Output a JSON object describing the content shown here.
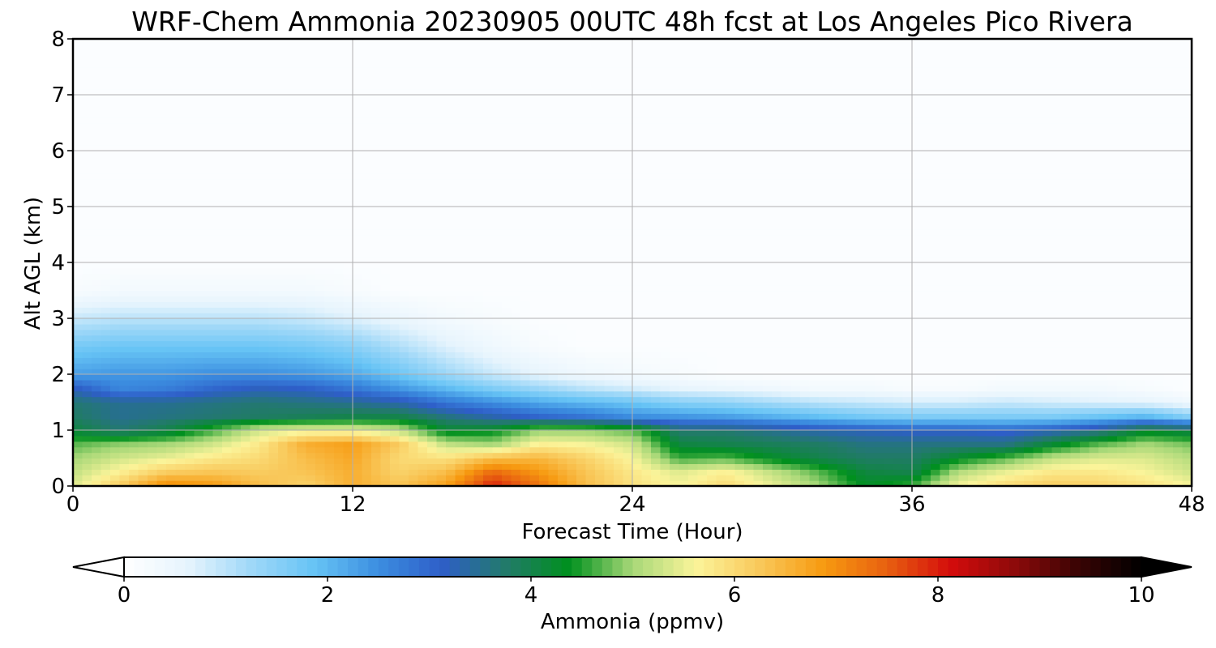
{
  "chart_data": {
    "type": "heatmap",
    "title": "WRF-Chem Ammonia  20230905 00UTC 48h fcst at Los Angeles Pico Rivera",
    "xlabel": "Forecast Time (Hour)",
    "ylabel": "Alt AGL (km)",
    "xlim": [
      0,
      48
    ],
    "ylim": [
      0,
      8
    ],
    "x_ticks": [
      "0",
      "12",
      "24",
      "36",
      "48"
    ],
    "y_ticks": [
      "0",
      "1",
      "2",
      "3",
      "4",
      "5",
      "6",
      "7",
      "8"
    ],
    "grid": true,
    "colorbar": {
      "label": "Ammonia  (ppmv)",
      "range": [
        0,
        10
      ],
      "ticks": [
        "0",
        "2",
        "4",
        "6",
        "8",
        "10"
      ],
      "extend": "both",
      "orientation": "horizontal",
      "colors": [
        "#ffffff",
        "#e6f4fd",
        "#9fd8f8",
        "#66c3f5",
        "#3c8ee0",
        "#2e5ec8",
        "#227a6a",
        "#00901e",
        "#a8d878",
        "#fbf49a",
        "#f9c85a",
        "#f79a10",
        "#e86010",
        "#d40c0c",
        "#8e0a0a",
        "#3a0404",
        "#000000"
      ]
    },
    "time_hours": [
      0,
      2,
      4,
      6,
      8,
      10,
      12,
      14,
      16,
      18,
      20,
      22,
      24,
      26,
      28,
      30,
      32,
      34,
      36,
      38,
      40,
      42,
      44,
      46,
      48
    ],
    "altitude_km": [
      0.0,
      0.25,
      0.5,
      0.75,
      1.0,
      1.25,
      1.5,
      1.75,
      2.0,
      2.5,
      3.0,
      3.5,
      4.0,
      5.0,
      6.0,
      8.0
    ],
    "values_ppmv": [
      [
        5.4,
        6.2,
        7.1,
        6.9,
        6.4,
        6.1,
        6.6,
        6.3,
        6.8,
        8.0,
        7.3,
        6.4,
        5.9,
        5.6,
        6.0,
        5.5,
        5.0,
        4.3,
        4.6,
        5.6,
        6.0,
        6.2,
        6.1,
        5.9,
        5.6
      ],
      [
        5.2,
        5.7,
        6.2,
        6.3,
        6.2,
        6.3,
        6.6,
        6.1,
        6.4,
        7.4,
        6.9,
        6.3,
        5.8,
        5.4,
        5.7,
        5.2,
        4.7,
        4.1,
        4.0,
        5.1,
        5.5,
        5.8,
        5.8,
        5.6,
        5.3
      ],
      [
        5.0,
        5.3,
        5.5,
        5.8,
        6.0,
        6.4,
        6.7,
        6.0,
        5.9,
        6.4,
        6.5,
        6.1,
        5.6,
        4.6,
        4.7,
        4.3,
        4.0,
        3.8,
        3.8,
        4.3,
        4.7,
        5.2,
        5.4,
        5.4,
        5.1
      ],
      [
        4.7,
        4.9,
        5.0,
        5.3,
        5.8,
        6.6,
        6.8,
        6.2,
        5.2,
        5.0,
        5.7,
        5.6,
        5.3,
        4.1,
        4.0,
        3.9,
        3.8,
        3.6,
        3.6,
        3.6,
        3.6,
        4.2,
        4.7,
        5.0,
        4.8
      ],
      [
        4.1,
        3.7,
        4.0,
        4.6,
        5.3,
        5.5,
        5.5,
        5.2,
        4.2,
        4.3,
        4.9,
        4.9,
        4.7,
        3.7,
        3.7,
        3.5,
        3.3,
        3.2,
        3.1,
        3.1,
        3.0,
        3.2,
        3.5,
        4.2,
        4.0
      ],
      [
        3.8,
        3.5,
        3.6,
        3.7,
        3.8,
        3.9,
        4.0,
        4.0,
        3.6,
        3.3,
        3.0,
        2.8,
        2.5,
        2.4,
        2.3,
        2.1,
        1.9,
        1.7,
        1.6,
        1.6,
        1.6,
        1.6,
        1.8,
        2.0,
        1.5
      ],
      [
        3.7,
        3.5,
        3.5,
        3.6,
        3.7,
        3.6,
        3.5,
        3.3,
        2.8,
        2.5,
        2.2,
        2.0,
        1.8,
        1.5,
        1.4,
        1.2,
        1.0,
        0.9,
        0.8,
        0.8,
        0.9,
        0.8,
        0.7,
        0.6,
        0.4
      ],
      [
        3.2,
        2.6,
        2.7,
        3.0,
        3.2,
        3.1,
        2.8,
        2.4,
        2.0,
        1.6,
        1.3,
        1.0,
        0.8,
        0.6,
        0.5,
        0.4,
        0.3,
        0.3,
        0.2,
        0.2,
        0.3,
        0.3,
        0.3,
        0.2,
        0.1
      ],
      [
        2.3,
        2.4,
        2.4,
        2.5,
        2.5,
        2.4,
        2.2,
        1.8,
        1.3,
        0.9,
        0.6,
        0.4,
        0.3,
        0.2,
        0.1,
        0.1,
        0.1,
        0.1,
        0.1,
        0.1,
        0.1,
        0.1,
        0.1,
        0.1,
        0.1
      ],
      [
        1.7,
        1.8,
        1.8,
        1.8,
        1.8,
        1.7,
        1.5,
        1.1,
        0.7,
        0.4,
        0.2,
        0.1,
        0.1,
        0.1,
        0.1,
        0.1,
        0.1,
        0.1,
        0.1,
        0.1,
        0.1,
        0.1,
        0.1,
        0.1,
        0.1
      ],
      [
        0.9,
        1.0,
        1.0,
        1.0,
        1.0,
        0.9,
        0.7,
        0.5,
        0.3,
        0.2,
        0.1,
        0.1,
        0.1,
        0.1,
        0.1,
        0.1,
        0.1,
        0.1,
        0.1,
        0.1,
        0.1,
        0.1,
        0.1,
        0.1,
        0.1
      ],
      [
        0.2,
        0.3,
        0.3,
        0.3,
        0.3,
        0.3,
        0.2,
        0.1,
        0.1,
        0.1,
        0.1,
        0.1,
        0.1,
        0.1,
        0.1,
        0.1,
        0.1,
        0.1,
        0.1,
        0.1,
        0.1,
        0.1,
        0.1,
        0.1,
        0.1
      ],
      [
        0.1,
        0.1,
        0.1,
        0.1,
        0.1,
        0.1,
        0.1,
        0.1,
        0.1,
        0.1,
        0.1,
        0.1,
        0.1,
        0.1,
        0.1,
        0.1,
        0.1,
        0.1,
        0.1,
        0.1,
        0.1,
        0.1,
        0.1,
        0.1,
        0.1
      ],
      [
        0.1,
        0.1,
        0.1,
        0.1,
        0.1,
        0.1,
        0.1,
        0.1,
        0.1,
        0.1,
        0.1,
        0.1,
        0.1,
        0.1,
        0.1,
        0.1,
        0.1,
        0.1,
        0.1,
        0.1,
        0.1,
        0.1,
        0.1,
        0.1,
        0.1
      ],
      [
        0.1,
        0.1,
        0.1,
        0.1,
        0.1,
        0.1,
        0.1,
        0.1,
        0.1,
        0.1,
        0.1,
        0.1,
        0.1,
        0.1,
        0.1,
        0.1,
        0.1,
        0.1,
        0.1,
        0.1,
        0.1,
        0.1,
        0.1,
        0.1,
        0.1
      ],
      [
        0.1,
        0.1,
        0.1,
        0.1,
        0.1,
        0.1,
        0.1,
        0.1,
        0.1,
        0.1,
        0.1,
        0.1,
        0.1,
        0.1,
        0.1,
        0.1,
        0.1,
        0.1,
        0.1,
        0.1,
        0.1,
        0.1,
        0.1,
        0.1,
        0.1
      ]
    ]
  }
}
